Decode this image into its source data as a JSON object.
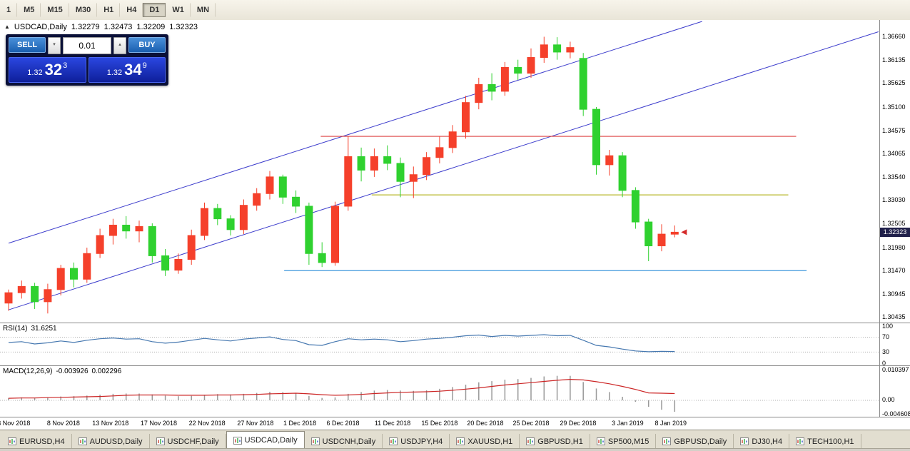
{
  "toolbar": {
    "timeframes": [
      "1",
      "M5",
      "M15",
      "M30",
      "H1",
      "H4",
      "D1",
      "W1",
      "MN"
    ],
    "active": "D1"
  },
  "chart_header": {
    "symbol": "USDCAD,Daily",
    "open": "1.32279",
    "high": "1.32473",
    "low": "1.32209",
    "close": "1.32323"
  },
  "one_click": {
    "sell_label": "SELL",
    "buy_label": "BUY",
    "volume": "0.01",
    "bid": {
      "prefix": "1.32",
      "big": "32",
      "sup": "3"
    },
    "ask": {
      "prefix": "1.32",
      "big": "34",
      "sup": "9"
    }
  },
  "price_scale": {
    "labels": [
      "1.36660",
      "1.36135",
      "1.35625",
      "1.35100",
      "1.34575",
      "1.34065",
      "1.33540",
      "1.33030",
      "1.32505",
      "1.31980",
      "1.31470",
      "1.30945",
      "1.30435"
    ],
    "current_price": "1.32323"
  },
  "rsi_panel": {
    "title": "RSI(14)",
    "value": "31.6251",
    "levels": [
      "100",
      "70",
      "30",
      "0"
    ]
  },
  "macd_panel": {
    "title": "MACD(12,26,9)",
    "value_main": "-0.003926",
    "value_signal": "0.002296",
    "levels": [
      "0.010397",
      "0.00",
      "-0.004608"
    ]
  },
  "time_axis": {
    "labels": [
      {
        "pos": 0.4,
        "text": "3 Nov 2018"
      },
      {
        "pos": 4.2,
        "text": "8 Nov 2018"
      },
      {
        "pos": 7.8,
        "text": "13 Nov 2018"
      },
      {
        "pos": 11.5,
        "text": "17 Nov 2018"
      },
      {
        "pos": 15.2,
        "text": "22 Nov 2018"
      },
      {
        "pos": 18.9,
        "text": "27 Nov 2018"
      },
      {
        "pos": 22.3,
        "text": "1 Dec 2018"
      },
      {
        "pos": 25.6,
        "text": "6 Dec 2018"
      },
      {
        "pos": 29.4,
        "text": "11 Dec 2018"
      },
      {
        "pos": 33.0,
        "text": "15 Dec 2018"
      },
      {
        "pos": 36.5,
        "text": "20 Dec 2018"
      },
      {
        "pos": 40.0,
        "text": "25 Dec 2018"
      },
      {
        "pos": 43.6,
        "text": "29 Dec 2018"
      },
      {
        "pos": 47.4,
        "text": "3 Jan 2019"
      },
      {
        "pos": 50.7,
        "text": "8 Jan 2019"
      }
    ]
  },
  "tabs": [
    {
      "label": "EURUSD,H4",
      "active": false
    },
    {
      "label": "AUDUSD,Daily",
      "active": false
    },
    {
      "label": "USDCHF,Daily",
      "active": false
    },
    {
      "label": "USDCAD,Daily",
      "active": true
    },
    {
      "label": "USDCNH,Daily",
      "active": false
    },
    {
      "label": "USDJPY,H4",
      "active": false
    },
    {
      "label": "XAUUSD,H1",
      "active": false
    },
    {
      "label": "GBPUSD,H1",
      "active": false
    },
    {
      "label": "SP500,M15",
      "active": false
    },
    {
      "label": "GBPUSD,Daily",
      "active": false
    },
    {
      "label": "DJ30,H4",
      "active": false
    },
    {
      "label": "TECH100,H1",
      "active": false
    }
  ],
  "colors": {
    "bull": "#f5402b",
    "bear": "#2fd12f",
    "channel": "#3c3ccc",
    "resistance": "#de4040",
    "support_mid": "#b9b92f",
    "support_low": "#3f97dd",
    "rsi_line": "#4678b0",
    "macd_signal": "#cc2626",
    "macd_hist": "#999999",
    "price_tag_bg": "#20204a"
  },
  "chart_data": {
    "type": "candlestick",
    "symbol": "USDCAD",
    "timeframe": "Daily",
    "ylim": [
      1.3035,
      1.37
    ],
    "ohlc": [
      [
        1.3075,
        1.3105,
        1.3058,
        1.3098
      ],
      [
        1.3098,
        1.3125,
        1.3085,
        1.3112
      ],
      [
        1.3112,
        1.312,
        1.3062,
        1.3078
      ],
      [
        1.3078,
        1.3118,
        1.3052,
        1.3105
      ],
      [
        1.3105,
        1.316,
        1.3092,
        1.3152
      ],
      [
        1.3152,
        1.3165,
        1.311,
        1.3128
      ],
      [
        1.3128,
        1.3198,
        1.312,
        1.3185
      ],
      [
        1.3185,
        1.324,
        1.3175,
        1.3225
      ],
      [
        1.3225,
        1.3262,
        1.3205,
        1.3248
      ],
      [
        1.3248,
        1.3268,
        1.3218,
        1.3235
      ],
      [
        1.3235,
        1.3258,
        1.321,
        1.3245
      ],
      [
        1.3245,
        1.3252,
        1.3165,
        1.318
      ],
      [
        1.318,
        1.3195,
        1.3135,
        1.3148
      ],
      [
        1.3148,
        1.3185,
        1.314,
        1.3172
      ],
      [
        1.3172,
        1.3238,
        1.316,
        1.3225
      ],
      [
        1.3225,
        1.3298,
        1.3215,
        1.3285
      ],
      [
        1.3285,
        1.3295,
        1.3248,
        1.3262
      ],
      [
        1.3262,
        1.327,
        1.3225,
        1.3238
      ],
      [
        1.3238,
        1.3305,
        1.3228,
        1.3292
      ],
      [
        1.3292,
        1.333,
        1.328,
        1.3318
      ],
      [
        1.3318,
        1.3368,
        1.3305,
        1.3355
      ],
      [
        1.3355,
        1.336,
        1.3295,
        1.331
      ],
      [
        1.331,
        1.3325,
        1.3275,
        1.329
      ],
      [
        1.329,
        1.3298,
        1.316,
        1.3185
      ],
      [
        1.3185,
        1.321,
        1.3155,
        1.3165
      ],
      [
        1.3165,
        1.33,
        1.3158,
        1.329
      ],
      [
        1.329,
        1.3445,
        1.328,
        1.34
      ],
      [
        1.34,
        1.342,
        1.3345,
        1.337
      ],
      [
        1.337,
        1.3418,
        1.3355,
        1.34
      ],
      [
        1.34,
        1.3425,
        1.337,
        1.3385
      ],
      [
        1.3385,
        1.3398,
        1.331,
        1.3345
      ],
      [
        1.3345,
        1.3378,
        1.3308,
        1.336
      ],
      [
        1.336,
        1.341,
        1.3348,
        1.3398
      ],
      [
        1.3398,
        1.3445,
        1.3385,
        1.342
      ],
      [
        1.342,
        1.347,
        1.3408,
        1.3455
      ],
      [
        1.3455,
        1.3535,
        1.344,
        1.352
      ],
      [
        1.352,
        1.3575,
        1.3505,
        1.356
      ],
      [
        1.356,
        1.3585,
        1.3525,
        1.3545
      ],
      [
        1.3545,
        1.361,
        1.3535,
        1.3598
      ],
      [
        1.3598,
        1.3615,
        1.357,
        1.3585
      ],
      [
        1.3585,
        1.364,
        1.3575,
        1.362
      ],
      [
        1.362,
        1.3666,
        1.3608,
        1.3648
      ],
      [
        1.3648,
        1.3665,
        1.3615,
        1.3632
      ],
      [
        1.3632,
        1.3655,
        1.3618,
        1.3642
      ],
      [
        1.3618,
        1.363,
        1.349,
        1.3505
      ],
      [
        1.3505,
        1.351,
        1.336,
        1.3382
      ],
      [
        1.3382,
        1.3415,
        1.3358,
        1.3402
      ],
      [
        1.3402,
        1.341,
        1.331,
        1.3325
      ],
      [
        1.3325,
        1.3332,
        1.324,
        1.3255
      ],
      [
        1.3255,
        1.3262,
        1.3168,
        1.3202
      ],
      [
        1.3202,
        1.325,
        1.319,
        1.3228
      ],
      [
        1.32279,
        1.32473,
        1.32209,
        1.32323
      ]
    ],
    "overlays": {
      "channel_lines": [
        {
          "bar1": 0,
          "price1": 1.306,
          "bar2": 66.6,
          "price2": 1.3677
        },
        {
          "bar1": 0,
          "price1": 1.3208,
          "bar2": 53.1,
          "price2": 1.37
        }
      ],
      "hlines": [
        {
          "price": 1.3445,
          "bar1": 23.9,
          "bar2": 60.3,
          "color": "resistance"
        },
        {
          "price": 1.3315,
          "bar1": 27.8,
          "bar2": 59.7,
          "color": "support_mid"
        },
        {
          "price": 1.3147,
          "bar1": 21.1,
          "bar2": 61.1,
          "color": "support_low"
        }
      ]
    },
    "rsi": {
      "period": 14,
      "ylim": [
        0,
        100
      ],
      "levels": [
        70,
        30
      ],
      "values": [
        56,
        58,
        52,
        55,
        60,
        56,
        62,
        66,
        68,
        65,
        66,
        58,
        54,
        57,
        62,
        67,
        63,
        60,
        65,
        68,
        71,
        64,
        61,
        50,
        48,
        58,
        66,
        63,
        65,
        63,
        58,
        61,
        65,
        67,
        70,
        74,
        76,
        72,
        75,
        73,
        75,
        77,
        74,
        75,
        62,
        48,
        44,
        38,
        33,
        31,
        32,
        31.6
      ]
    },
    "macd": {
      "params": [
        12,
        26,
        9
      ],
      "ylim": [
        -0.004608,
        0.010397
      ],
      "histogram": [
        0.0008,
        0.001,
        0.0009,
        0.001,
        0.0013,
        0.0014,
        0.0016,
        0.0019,
        0.0022,
        0.0023,
        0.0023,
        0.002,
        0.0016,
        0.0014,
        0.0015,
        0.0019,
        0.0021,
        0.002,
        0.0022,
        0.0025,
        0.0029,
        0.0028,
        0.0025,
        0.0015,
        0.0008,
        0.001,
        0.0022,
        0.0028,
        0.0033,
        0.0035,
        0.0033,
        0.0032,
        0.0034,
        0.0039,
        0.0045,
        0.0053,
        0.0061,
        0.0065,
        0.007,
        0.0072,
        0.0076,
        0.0081,
        0.0083,
        0.0083,
        0.0062,
        0.004,
        0.0028,
        0.0012,
        -0.0005,
        -0.0022,
        -0.0032,
        -0.0039
      ],
      "signal": [
        0.0007,
        0.0008,
        0.0008,
        0.0009,
        0.001,
        0.0011,
        0.0012,
        0.0013,
        0.0015,
        0.0017,
        0.0018,
        0.0018,
        0.0018,
        0.0017,
        0.0017,
        0.0017,
        0.0018,
        0.0018,
        0.0019,
        0.002,
        0.0022,
        0.0023,
        0.0024,
        0.0022,
        0.0019,
        0.0017,
        0.0018,
        0.002,
        0.0023,
        0.0025,
        0.0027,
        0.0028,
        0.0029,
        0.0031,
        0.0034,
        0.0038,
        0.0042,
        0.0047,
        0.0052,
        0.0056,
        0.006,
        0.0064,
        0.0068,
        0.0071,
        0.0069,
        0.0063,
        0.0056,
        0.0047,
        0.0037,
        0.0025,
        0.0024,
        0.0023
      ]
    }
  }
}
